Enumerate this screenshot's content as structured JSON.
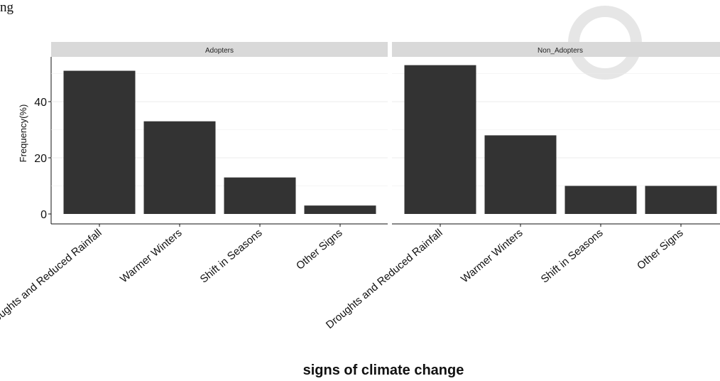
{
  "page": {
    "top_text_fragment": "ng"
  },
  "chart_data": {
    "type": "bar",
    "facets": [
      {
        "name": "Adopters",
        "categories": [
          "Droughts and Reduced Rainfall",
          "Warmer Winters",
          "Shift in Seasons",
          "Other Signs"
        ],
        "values": [
          51,
          33,
          13,
          3
        ]
      },
      {
        "name": "Non_Adopters",
        "categories": [
          "Droughts and Reduced Rainfall",
          "Warmer Winters",
          "Shift in Seasons",
          "Other Signs"
        ],
        "values": [
          53,
          28,
          10,
          10
        ]
      }
    ],
    "xlabel": "signs of climate change",
    "ylabel": "Frequency(%)",
    "ylim": [
      0,
      55
    ],
    "yticks": [
      0,
      20,
      40
    ],
    "grid": true,
    "bar_color": "#333333",
    "strip_color": "#d9d9d9",
    "grid_color": "#ebebeb"
  }
}
